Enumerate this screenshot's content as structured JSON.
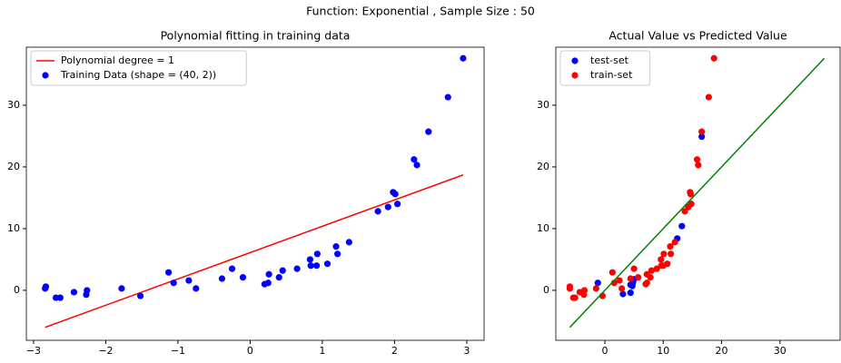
{
  "title": "Function: Exponential , Sample Size : 50",
  "chart_data": [
    {
      "type": "scatter",
      "title": "Polynomial fitting in training data",
      "xlim": [
        -3.1,
        3.24
      ],
      "ylim": [
        -8.1,
        39.4
      ],
      "xticks": [
        {
          "value": -3,
          "label": "−3"
        },
        {
          "value": -2,
          "label": "−2"
        },
        {
          "value": -1,
          "label": "−1"
        },
        0,
        1,
        2,
        3
      ],
      "yticks": [
        0,
        10,
        20,
        30
      ],
      "legend": "upper-left",
      "series": [
        {
          "name": "Polynomial degree = 1",
          "mark": "line",
          "color": "#ff0000",
          "x": [
            -2.84,
            2.95
          ],
          "values": [
            -6.0,
            18.7
          ]
        },
        {
          "name": "Training Data (shape = (40, 2))",
          "mark": "points",
          "color": "#0000ff",
          "x": [
            -2.84,
            -2.83,
            -2.69,
            -2.63,
            -2.44,
            -2.26,
            -2.27,
            -1.78,
            -1.52,
            -1.13,
            -1.06,
            -0.85,
            -0.75,
            -0.39,
            -0.25,
            -0.1,
            0.2,
            0.25,
            0.26,
            0.4,
            0.45,
            0.65,
            0.83,
            0.84,
            0.92,
            0.93,
            1.07,
            1.19,
            1.21,
            1.37,
            1.77,
            1.91,
            1.98,
            2.01,
            2.04,
            2.27,
            2.31,
            2.47,
            2.74,
            2.95
          ],
          "values": [
            0.3,
            0.6,
            -1.2,
            -1.2,
            -0.3,
            0.0,
            -0.7,
            0.3,
            -0.9,
            2.9,
            1.2,
            1.6,
            0.3,
            1.9,
            3.5,
            2.1,
            1.0,
            1.2,
            2.6,
            2.1,
            3.2,
            3.5,
            5.0,
            4.0,
            4.0,
            5.9,
            4.3,
            7.1,
            5.9,
            7.8,
            12.8,
            13.5,
            15.9,
            15.6,
            14.0,
            21.2,
            20.3,
            25.7,
            31.3,
            37.6
          ]
        }
      ]
    },
    {
      "type": "scatter",
      "title": "Actual Value vs Predicted Value",
      "xlim": [
        -8.4,
        40.3
      ],
      "ylim": [
        -8.1,
        39.4
      ],
      "xticks": [
        0,
        10,
        20,
        30
      ],
      "yticks": [
        0,
        10,
        20,
        30
      ],
      "legend": "upper-left",
      "series": [
        {
          "name": "test-set",
          "mark": "points",
          "color": "#0000ff",
          "x": [
            -1.2,
            3.1,
            4.4,
            4.4,
            4.7,
            5.0,
            4.8,
            12.4,
            13.2,
            16.6
          ],
          "values": [
            1.2,
            -0.6,
            -0.4,
            0.9,
            0.7,
            1.8,
            1.2,
            8.4,
            10.4,
            24.9
          ]
        },
        {
          "name": "train-set",
          "mark": "points",
          "color": "#ff0000",
          "x": [
            -6.0,
            -6.0,
            -5.4,
            -5.1,
            -4.3,
            -3.5,
            -3.6,
            -1.5,
            -0.4,
            1.3,
            1.6,
            2.5,
            2.9,
            4.4,
            5.0,
            5.7,
            7.0,
            7.2,
            7.2,
            7.8,
            8.0,
            8.9,
            9.6,
            9.7,
            10.0,
            10.1,
            10.7,
            11.2,
            11.3,
            12.0,
            13.7,
            14.3,
            14.6,
            14.7,
            14.8,
            15.8,
            16.0,
            16.6,
            17.8,
            18.7
          ],
          "values": [
            0.3,
            0.6,
            -1.2,
            -1.2,
            -0.3,
            0.0,
            -0.7,
            0.3,
            -0.9,
            2.9,
            1.2,
            1.6,
            0.3,
            1.9,
            3.5,
            2.1,
            1.0,
            1.2,
            2.6,
            2.1,
            3.2,
            3.5,
            5.0,
            4.0,
            4.0,
            5.9,
            4.3,
            7.1,
            5.9,
            7.8,
            12.8,
            13.5,
            15.9,
            15.6,
            14.0,
            21.2,
            20.3,
            25.7,
            31.3,
            37.6
          ]
        },
        {
          "name": null,
          "mark": "line",
          "color": "#008000",
          "x": [
            -6.0,
            37.6
          ],
          "values": [
            -6.0,
            37.6
          ]
        }
      ]
    }
  ]
}
